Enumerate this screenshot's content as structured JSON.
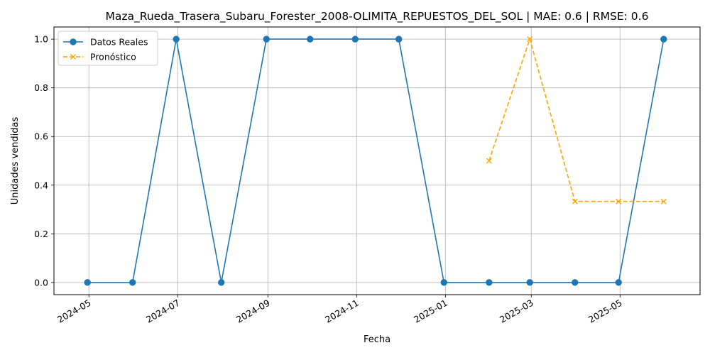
{
  "chart_data": {
    "type": "line",
    "title": "Maza_Rueda_Trasera_Subaru_Forester_2008-OLIMITA_REPUESTOS_DEL_SOL | MAE: 0.6 | RMSE: 0.6",
    "xlabel": "Fecha",
    "ylabel": "Unidades vendidas",
    "xlim": [
      "2024-04-07",
      "2025-06-25"
    ],
    "ylim": [
      -0.05,
      1.05
    ],
    "x_ticks": [
      "2024-05-01",
      "2024-07-01",
      "2024-09-01",
      "2024-11-01",
      "2025-01-01",
      "2025-03-01",
      "2025-05-01"
    ],
    "x_tick_labels": [
      "2024-05",
      "2024-07",
      "2024-09",
      "2024-11",
      "2025-01",
      "2025-03",
      "2025-05"
    ],
    "y_ticks": [
      0.0,
      0.2,
      0.4,
      0.6,
      0.8,
      1.0
    ],
    "y_tick_labels": [
      "0.0",
      "0.2",
      "0.4",
      "0.6",
      "0.8",
      "1.0"
    ],
    "grid": true,
    "legend_position": "top-left",
    "series": [
      {
        "name": "Datos Reales",
        "color": "#1f77b4",
        "style": "solid",
        "marker": "circle",
        "points": [
          {
            "x": "2024-04-30",
            "y": 0
          },
          {
            "x": "2024-05-31",
            "y": 0
          },
          {
            "x": "2024-06-30",
            "y": 1
          },
          {
            "x": "2024-07-31",
            "y": 0
          },
          {
            "x": "2024-08-31",
            "y": 1
          },
          {
            "x": "2024-09-30",
            "y": 1
          },
          {
            "x": "2024-10-31",
            "y": 1
          },
          {
            "x": "2024-11-30",
            "y": 1
          },
          {
            "x": "2024-12-31",
            "y": 0
          },
          {
            "x": "2025-01-31",
            "y": 0
          },
          {
            "x": "2025-02-28",
            "y": 0
          },
          {
            "x": "2025-03-31",
            "y": 0
          },
          {
            "x": "2025-04-30",
            "y": 0
          },
          {
            "x": "2025-05-31",
            "y": 1
          }
        ]
      },
      {
        "name": "Pronóstico",
        "color": "#ffa500",
        "style": "dashed",
        "marker": "x",
        "points": [
          {
            "x": "2025-01-31",
            "y": 0.5
          },
          {
            "x": "2025-02-28",
            "y": 1.0
          },
          {
            "x": "2025-03-31",
            "y": 0.333
          },
          {
            "x": "2025-04-30",
            "y": 0.333
          },
          {
            "x": "2025-05-31",
            "y": 0.333
          }
        ]
      }
    ]
  }
}
